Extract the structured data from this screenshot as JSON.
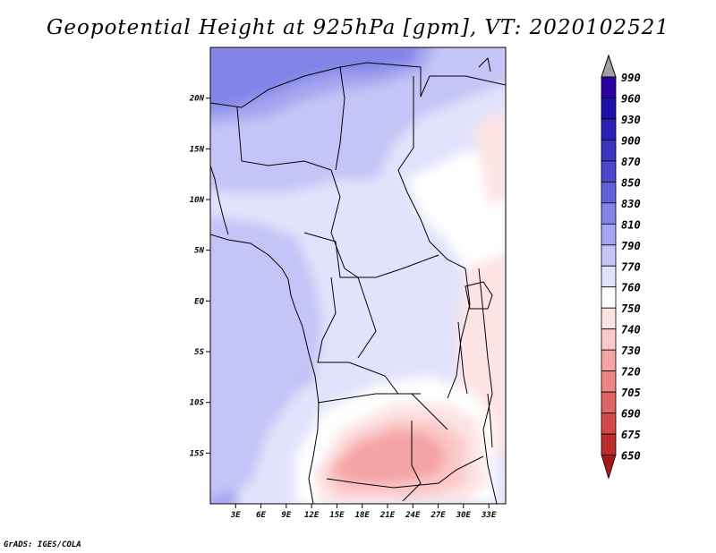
{
  "title": "Geopotential Height at 925hPa [gpm], VT: 2020102521",
  "credit": "GrADS: IGES/COLA",
  "map": {
    "lon_range": [
      0,
      35
    ],
    "lat_range": [
      -20,
      25
    ],
    "lat_ticks": [
      {
        "value": 20,
        "label": "20N"
      },
      {
        "value": 15,
        "label": "15N"
      },
      {
        "value": 10,
        "label": "10N"
      },
      {
        "value": 5,
        "label": "5N"
      },
      {
        "value": 0,
        "label": "EQ"
      },
      {
        "value": -5,
        "label": "5S"
      },
      {
        "value": -10,
        "label": "10S"
      },
      {
        "value": -15,
        "label": "15S"
      }
    ],
    "lon_ticks": [
      {
        "value": 3,
        "label": "3E"
      },
      {
        "value": 6,
        "label": "6E"
      },
      {
        "value": 9,
        "label": "9E"
      },
      {
        "value": 12,
        "label": "12E"
      },
      {
        "value": 15,
        "label": "15E"
      },
      {
        "value": 18,
        "label": "18E"
      },
      {
        "value": 21,
        "label": "21E"
      },
      {
        "value": 24,
        "label": "24E"
      },
      {
        "value": 27,
        "label": "27E"
      },
      {
        "value": 30,
        "label": "30E"
      },
      {
        "value": 33,
        "label": "33E"
      }
    ]
  },
  "colorbar": {
    "levels": [
      {
        "label": "990",
        "color": "#2a00a0"
      },
      {
        "label": "960",
        "color": "#1e0fa8"
      },
      {
        "label": "930",
        "color": "#2a22b4"
      },
      {
        "label": "900",
        "color": "#3a34c0"
      },
      {
        "label": "870",
        "color": "#4a48cc"
      },
      {
        "label": "850",
        "color": "#6060d8"
      },
      {
        "label": "830",
        "color": "#8484e8"
      },
      {
        "label": "810",
        "color": "#a4a4f0"
      },
      {
        "label": "790",
        "color": "#c4c4f6"
      },
      {
        "label": "770",
        "color": "#e2e2fc"
      },
      {
        "label": "760",
        "color": "#ffffff"
      },
      {
        "label": "750",
        "color": "#fde4e4"
      },
      {
        "label": "740",
        "color": "#fbc8c8"
      },
      {
        "label": "730",
        "color": "#f4a4a4"
      },
      {
        "label": "720",
        "color": "#ec8484"
      },
      {
        "label": "705",
        "color": "#e06464"
      },
      {
        "label": "690",
        "color": "#d04848"
      },
      {
        "label": "675",
        "color": "#bc2e2e"
      },
      {
        "label": "650",
        "color": "#a81818"
      }
    ],
    "top_arrow_color": "#a0a0a0"
  }
}
